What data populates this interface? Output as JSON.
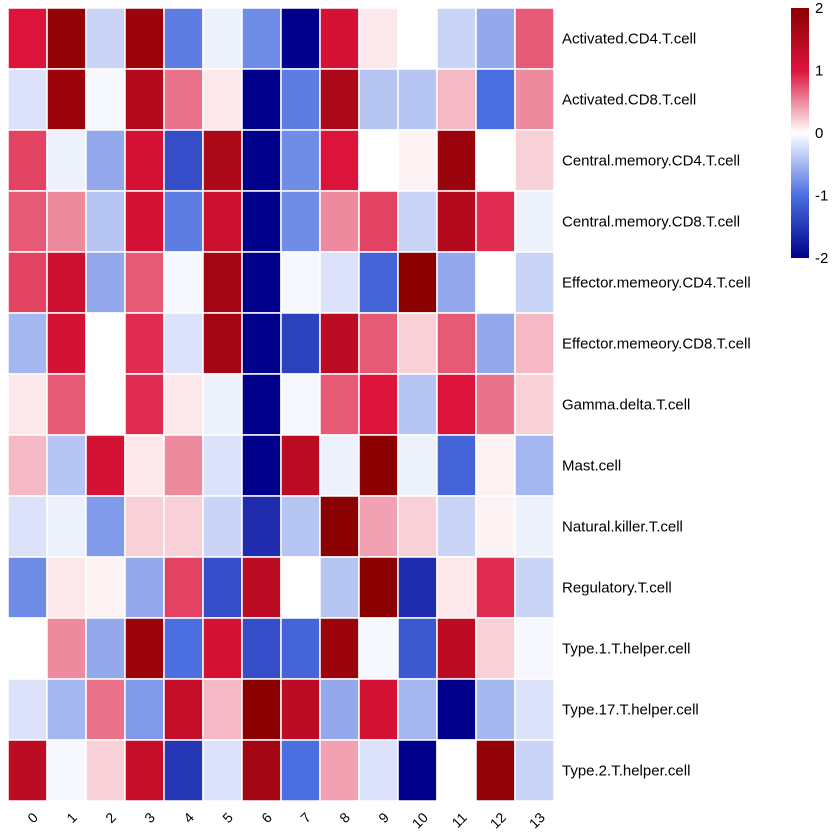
{
  "chart_data": {
    "type": "heatmap",
    "title": "",
    "xlabel": "",
    "ylabel": "",
    "columns": [
      "0",
      "1",
      "2",
      "3",
      "4",
      "5",
      "6",
      "7",
      "8",
      "9",
      "10",
      "11",
      "12",
      "13"
    ],
    "rows": [
      "Activated.CD4.T.cell",
      "Activated.CD8.T.cell",
      "Central.memory.CD4.T.cell",
      "Central.memory.CD8.T.cell",
      "Effector.memeory.CD4.T.cell",
      "Effector.memeory.CD8.T.cell",
      "Gamma.delta.T.cell",
      "Mast.cell",
      "Natural.killer.T.cell",
      "Regulatory.T.cell",
      "Type.1.T.helper.cell",
      "Type.17.T.helper.cell",
      "Type.2.T.helper.cell"
    ],
    "values": [
      [
        1.0,
        1.9,
        -0.3,
        1.8,
        -0.9,
        -0.1,
        -0.8,
        -2.0,
        1.1,
        0.1,
        0.0,
        -0.3,
        -0.6,
        0.7
      ],
      [
        -0.2,
        1.8,
        -0.05,
        1.5,
        0.6,
        0.1,
        -2.1,
        -0.9,
        1.6,
        -0.4,
        -0.4,
        0.3,
        -1.0,
        0.5
      ],
      [
        0.8,
        -0.1,
        -0.6,
        1.1,
        -1.3,
        1.6,
        -2.1,
        -0.8,
        1.0,
        0.0,
        0.05,
        1.8,
        0.0,
        0.2
      ],
      [
        0.7,
        0.5,
        -0.4,
        1.1,
        -0.9,
        1.2,
        -2.1,
        -0.8,
        0.5,
        0.8,
        -0.3,
        1.5,
        0.9,
        -0.1
      ],
      [
        0.8,
        1.2,
        -0.6,
        0.7,
        -0.05,
        1.7,
        -2.1,
        -0.05,
        -0.2,
        -1.1,
        2.1,
        -0.6,
        0.0,
        -0.3
      ],
      [
        -0.5,
        1.1,
        0.0,
        0.9,
        -0.2,
        1.7,
        -2.1,
        -1.4,
        1.4,
        0.7,
        0.2,
        0.7,
        -0.6,
        0.3
      ],
      [
        0.1,
        0.7,
        0.0,
        0.9,
        0.1,
        -0.1,
        -2.1,
        -0.05,
        0.7,
        1.0,
        -0.4,
        1.0,
        0.6,
        0.2
      ],
      [
        0.3,
        -0.4,
        1.1,
        0.1,
        0.5,
        -0.2,
        -2.1,
        1.4,
        -0.1,
        2.1,
        -0.1,
        -1.1,
        0.05,
        -0.5
      ],
      [
        -0.2,
        -0.1,
        -0.7,
        0.2,
        0.2,
        -0.3,
        -1.6,
        -0.4,
        2.1,
        0.4,
        0.2,
        -0.3,
        0.05,
        -0.1
      ],
      [
        -0.8,
        0.1,
        0.05,
        -0.6,
        0.8,
        -1.3,
        1.4,
        0.0,
        -0.4,
        2.1,
        -1.6,
        0.1,
        0.9,
        -0.3
      ],
      [
        0.0,
        0.5,
        -0.6,
        1.8,
        -1.0,
        1.1,
        -1.3,
        -1.1,
        1.8,
        -0.05,
        -1.2,
        1.4,
        0.2,
        -0.05
      ],
      [
        -0.2,
        -0.5,
        0.6,
        -0.7,
        1.3,
        0.3,
        2.1,
        1.4,
        -0.6,
        1.1,
        -0.5,
        -2.1,
        -0.5,
        -0.2
      ],
      [
        1.4,
        -0.05,
        0.2,
        1.3,
        -1.5,
        -0.2,
        1.7,
        -1.0,
        0.4,
        -0.2,
        -2.1,
        0.0,
        1.9,
        -0.3
      ]
    ],
    "color_scale": {
      "min": -2,
      "max": 2,
      "low": "#00008b",
      "mid_low": "#4b6fe0",
      "mid": "#ffffff",
      "mid_high": "#dc143c",
      "high": "#8b0000"
    },
    "legend": {
      "position": "top-right",
      "tick_labels": [
        "2",
        "1",
        "0",
        "-1",
        "-2"
      ],
      "ticks": [
        2,
        1,
        0,
        -1,
        -2
      ]
    },
    "grid": true
  }
}
